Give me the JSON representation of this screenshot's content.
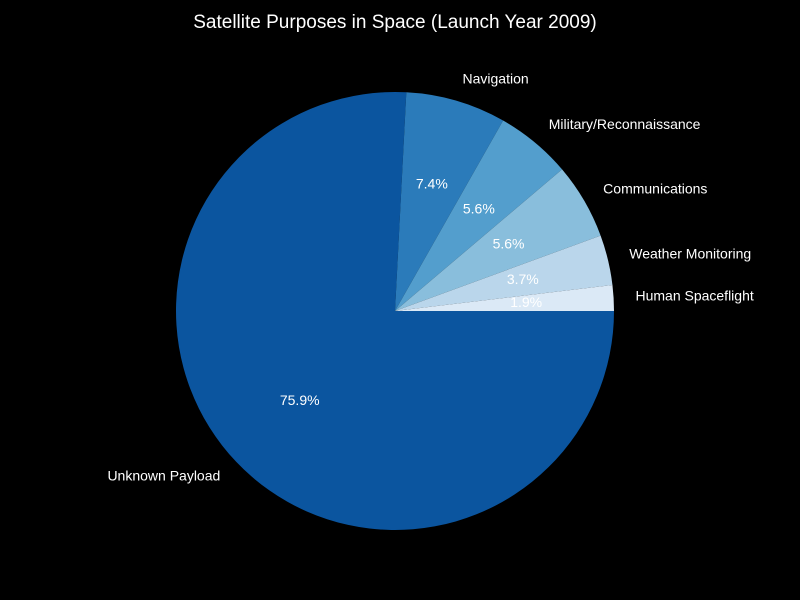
{
  "chart_data": {
    "type": "pie",
    "title": "Satellite Purposes in Space (Launch Year 2009)",
    "start_angle_deg": 0,
    "direction": "clockwise",
    "background": "#000000",
    "slices": [
      {
        "label": "Unknown Payload",
        "value": 75.9,
        "pct_label": "75.9%",
        "color": "#0b559f"
      },
      {
        "label": "Navigation",
        "value": 7.4,
        "pct_label": "7.4%",
        "color": "#2b7bba"
      },
      {
        "label": "Military/Reconnaissance",
        "value": 5.6,
        "pct_label": "5.6%",
        "color": "#539ecd"
      },
      {
        "label": "Communications",
        "value": 5.6,
        "pct_label": "5.6%",
        "color": "#89bedc"
      },
      {
        "label": "Weather Monitoring",
        "value": 3.7,
        "pct_label": "3.7%",
        "color": "#bad6eb"
      },
      {
        "label": "Human Spaceflight",
        "value": 1.9,
        "pct_label": "1.9%",
        "color": "#dbe9f6"
      }
    ]
  }
}
